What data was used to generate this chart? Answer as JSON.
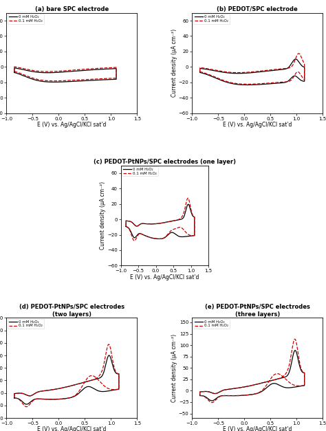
{
  "title_a": "(a) bare SPC electrode",
  "title_b": "(b) PEDOT/SPC electrode",
  "title_c": "(c) PEDOT-PtNPs/SPC electrodes (one layer)",
  "title_d": "(d) PEDOT-PtNPs/SPC electrodes\n(two layers)",
  "title_e": "(e) PEDOT-PtNPs/SPC electrodes\n(three layers)",
  "xlabel": "E (V) vs. Ag/AgCl/KCl sat'd",
  "ylabel_micro": "Current density (μA cm⁻²)",
  "legend_0": "0 mM H₂O₂",
  "legend_01": "0.1 mM H₂O₂",
  "color_black": "#000000",
  "color_red": "#cc0000",
  "background": "#ffffff",
  "xlim": [
    -1.0,
    1.5
  ],
  "xticks": [
    -1.0,
    -0.5,
    0.0,
    0.5,
    1.0,
    1.5
  ],
  "ylim_ab": [
    -60,
    70
  ],
  "ylim_c": [
    -60,
    70
  ],
  "ylim_d": [
    -40,
    120
  ],
  "ylim_e": [
    -60,
    160
  ]
}
